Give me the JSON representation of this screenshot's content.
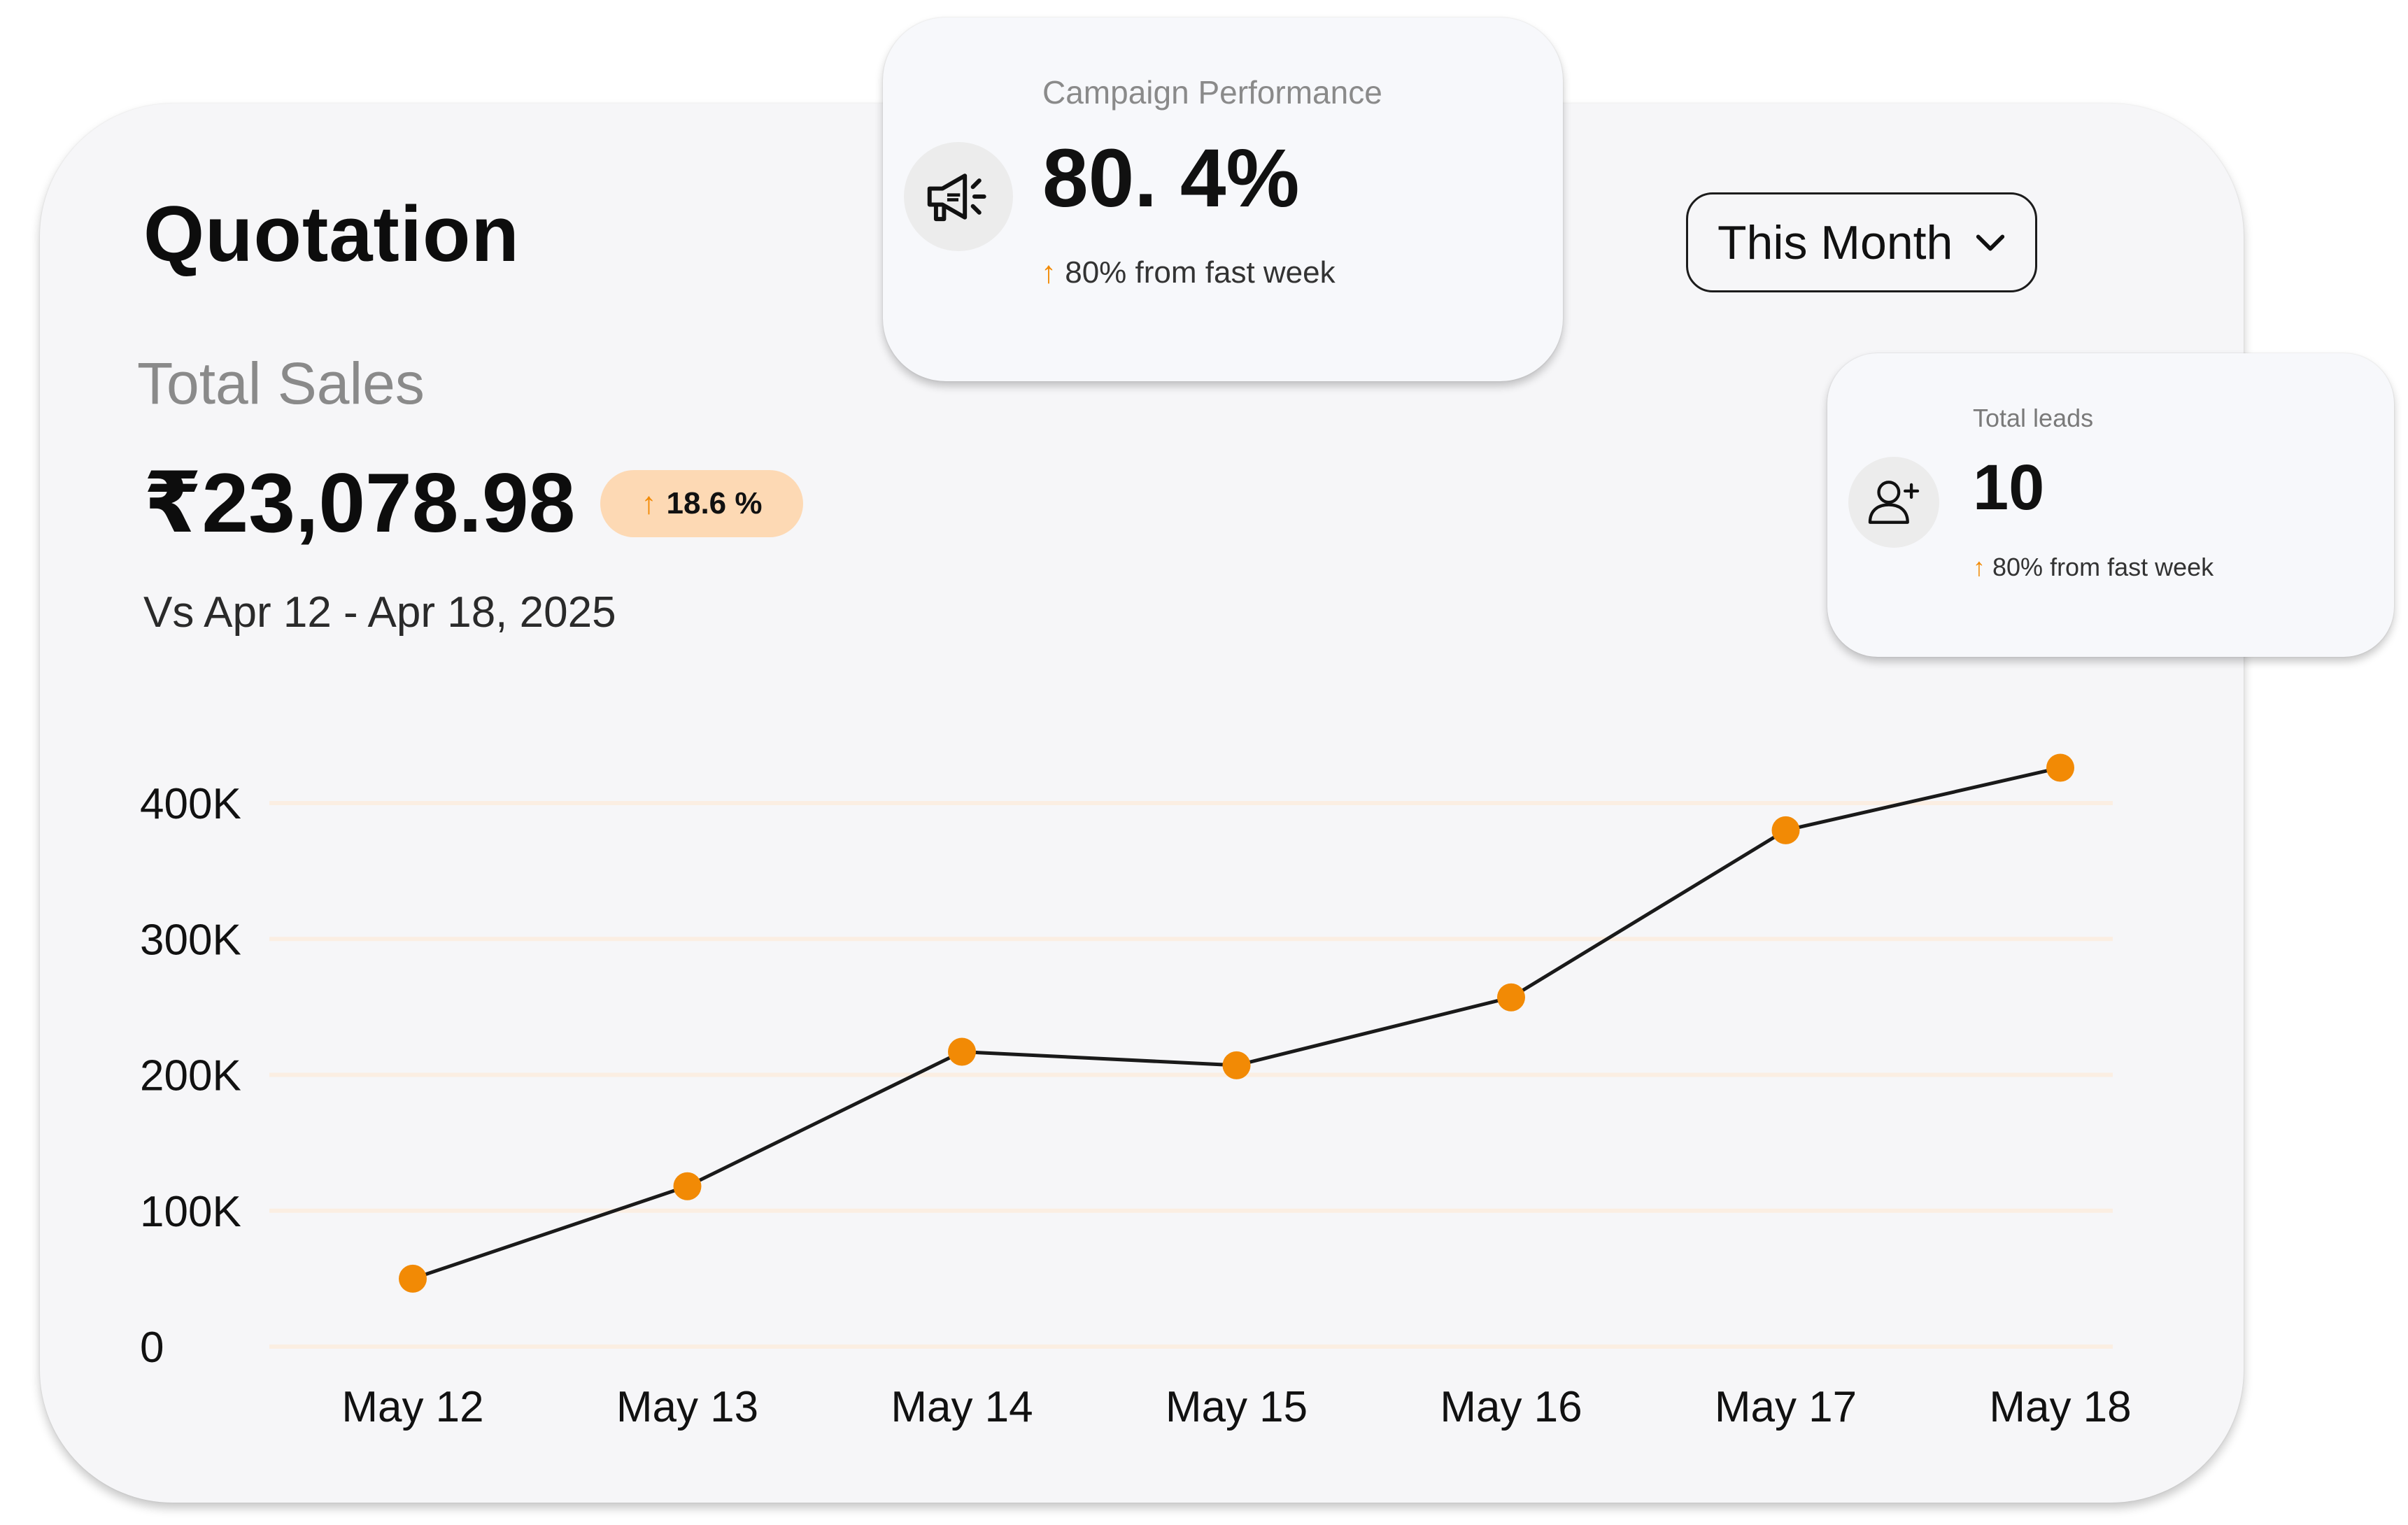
{
  "header": {
    "title": "Quotation",
    "subtitle": "Total Sales",
    "amount": "₹23,078.98",
    "change_pill": "18.6 %",
    "comparison": "Vs Apr 12 - Apr 18, 2025",
    "period_dropdown": "This Month"
  },
  "campaign_card": {
    "label": "Campaign Performance",
    "value": "80. 4%",
    "delta": "80% from fast week",
    "icon": "megaphone-icon"
  },
  "leads_card": {
    "label": "Total leads",
    "value": "10",
    "delta": "80% from fast week",
    "icon": "add-user-icon"
  },
  "colors": {
    "accent": "#f28a05",
    "pill_bg": "#fdd9b4",
    "line": "#1a1a1a",
    "grid": "#fbeee2",
    "card_bg": "#f6f6f8"
  },
  "chart_data": {
    "type": "line",
    "categories": [
      "May 12",
      "May 13",
      "May 14",
      "May 15",
      "May 16",
      "May 17",
      "May 18"
    ],
    "values": [
      50000,
      118000,
      217000,
      207000,
      257000,
      380000,
      426000
    ],
    "yticks": [
      {
        "value": 0,
        "label": "0"
      },
      {
        "value": 100000,
        "label": "100K"
      },
      {
        "value": 200000,
        "label": "200K"
      },
      {
        "value": 300000,
        "label": "300K"
      },
      {
        "value": 400000,
        "label": "400K"
      }
    ],
    "ylim": [
      0,
      400000
    ],
    "grid": true
  }
}
